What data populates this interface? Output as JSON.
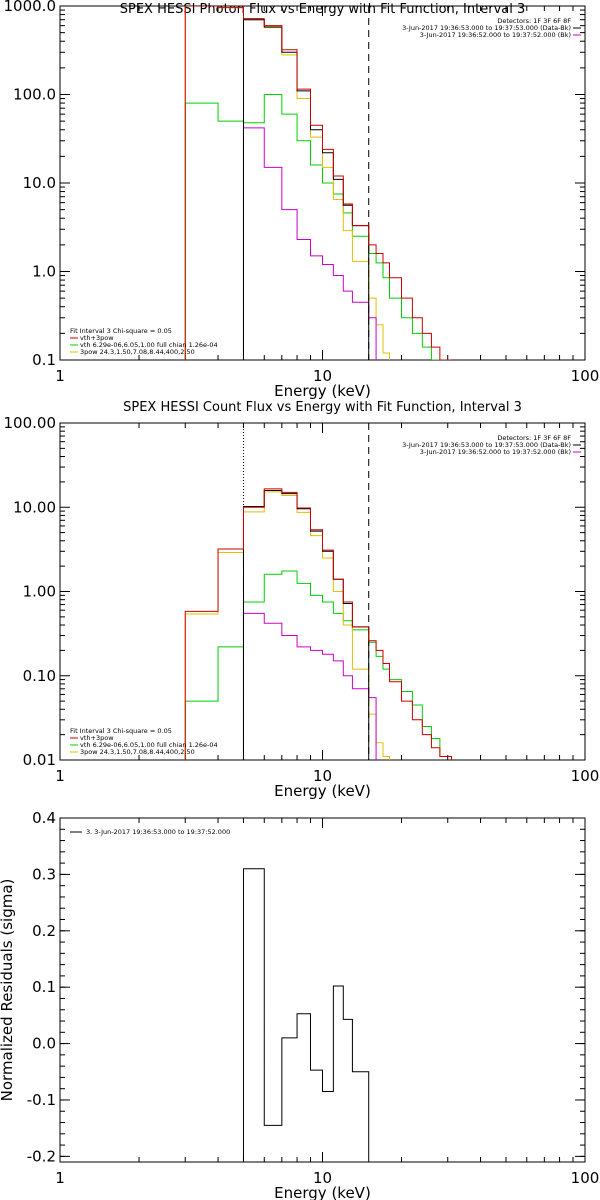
{
  "colors": {
    "total": "#cc0000",
    "data": "#000000",
    "background": "#cc00cc",
    "vth": "#00d000",
    "3pow": "#e0c000"
  },
  "chart_data": [
    {
      "type": "line",
      "title": "SPEX HESSI Photon Flux vs Energy with Fit Function, Interval 3",
      "xlabel": "Energy (keV)",
      "ylabel": "",
      "xscale": "log",
      "yscale": "log",
      "xlim": [
        1,
        100
      ],
      "ylim": [
        0.1,
        1000
      ],
      "xticks": [
        {
          "v": 1,
          "label": "1"
        },
        {
          "v": 10,
          "label": "10"
        },
        {
          "v": 100,
          "label": "100"
        }
      ],
      "yticks": [
        {
          "v": 0.1,
          "label": "0.1"
        },
        {
          "v": 1,
          "label": "1.0"
        },
        {
          "v": 10,
          "label": "10.0"
        },
        {
          "v": 100,
          "label": "100.0"
        },
        {
          "v": 1000,
          "label": "1000.0"
        }
      ],
      "vlines": [
        {
          "x": 5,
          "style": "dotted",
          "color": "#cc00cc"
        },
        {
          "x": 15,
          "style": "dashed",
          "color": "#000000"
        }
      ],
      "bin_edges": [
        3,
        4,
        5,
        6,
        7,
        8,
        9,
        10,
        11,
        12,
        13,
        15,
        16,
        17,
        18,
        20,
        22,
        24,
        26,
        28,
        31
      ],
      "series": [
        {
          "name": "data",
          "key": "data",
          "values": [
            null,
            null,
            700,
            580,
            300,
            110,
            40,
            22,
            11,
            5.6,
            3.3,
            null,
            null,
            null,
            null,
            null,
            null,
            null,
            null,
            null
          ]
        },
        {
          "name": "vth+3pow",
          "key": "total",
          "values": [
            1000,
            960,
            720,
            600,
            320,
            115,
            45,
            24,
            12,
            5.8,
            3.3,
            2.0,
            1.6,
            1.25,
            0.85,
            0.5,
            0.3,
            0.2,
            0.14,
            0.1
          ]
        },
        {
          "name": "vth 6.29e-06,6.05,1.00  full chian 1.26e-04",
          "key": "vth",
          "values": [
            80,
            50,
            48,
            100,
            60,
            30,
            16,
            10,
            7.5,
            4.6,
            2.5,
            1.6,
            1.25,
            0.85,
            0.5,
            0.3,
            0.2,
            0.14,
            0.1,
            null
          ]
        },
        {
          "name": "3pow 24.3,1.50,7.08,8.44,400,2.50",
          "key": "3pow",
          "values": [
            1000,
            960,
            700,
            570,
            280,
            90,
            33,
            15,
            6.5,
            2.9,
            1.3,
            0.5,
            0.25,
            0.12,
            null,
            null,
            null,
            null,
            null,
            null
          ]
        },
        {
          "name": "background",
          "key": "background",
          "values": [
            null,
            null,
            42,
            15,
            5.0,
            2.3,
            1.5,
            1.2,
            0.9,
            0.6,
            0.45,
            0.3,
            null,
            null,
            null,
            null,
            null,
            null,
            null,
            null
          ]
        }
      ],
      "legend_title": "Fit Interval 3   Chi-square = 0.05",
      "legend_entries": [
        {
          "label": "vth+3pow",
          "key": "total"
        },
        {
          "label": "vth 6.29e-06,6.05,1.00  full chian 1.26e-04",
          "key": "vth"
        },
        {
          "label": "3pow 24.3,1.50,7.08,8.44,400,2.50",
          "key": "3pow"
        }
      ],
      "info_lines": [
        {
          "text": "Detectors: 1F 3F 6F 8F",
          "key": null
        },
        {
          "text": "3-Jun-2017 19:36:53.000 to 19:37:53.000 (Data-Bk)",
          "key": "data"
        },
        {
          "text": "3-Jun-2017 19:36:52.000 to 19:37:52.000 (Bk)",
          "key": "background"
        }
      ]
    },
    {
      "type": "line",
      "title": "SPEX HESSI Count Flux vs Energy with Fit Function, Interval 3",
      "xlabel": "Energy (keV)",
      "ylabel": "",
      "xscale": "log",
      "yscale": "log",
      "xlim": [
        1,
        100
      ],
      "ylim": [
        0.01,
        100
      ],
      "xticks": [
        {
          "v": 1,
          "label": "1"
        },
        {
          "v": 10,
          "label": "10"
        },
        {
          "v": 100,
          "label": "100"
        }
      ],
      "yticks": [
        {
          "v": 0.01,
          "label": "0.01"
        },
        {
          "v": 0.1,
          "label": "0.10"
        },
        {
          "v": 1,
          "label": "1.00"
        },
        {
          "v": 10,
          "label": "10.00"
        },
        {
          "v": 100,
          "label": "100.00"
        }
      ],
      "vlines": [
        {
          "x": 5,
          "style": "dotted",
          "color": "#000000"
        },
        {
          "x": 15,
          "style": "dashed",
          "color": "#000000"
        }
      ],
      "bin_edges": [
        3,
        4,
        5,
        6,
        7,
        8,
        9,
        10,
        11,
        12,
        13,
        15,
        16,
        17,
        18,
        20,
        22,
        24,
        26,
        28,
        31
      ],
      "series": [
        {
          "name": "data",
          "key": "data",
          "values": [
            null,
            null,
            10.2,
            15.8,
            14.5,
            9.6,
            5.2,
            3.0,
            1.4,
            0.72,
            0.38,
            null,
            null,
            null,
            null,
            null,
            null,
            null,
            null,
            null
          ]
        },
        {
          "name": "vth+3pow",
          "key": "total",
          "values": [
            0.58,
            3.2,
            10,
            16.5,
            15,
            9.8,
            5.4,
            3.1,
            1.4,
            0.75,
            0.38,
            0.26,
            0.2,
            0.14,
            0.085,
            0.05,
            0.03,
            0.02,
            0.014,
            0.011
          ]
        },
        {
          "name": "vth 6.29e-06,6.05,1.00  full chian 1.26e-04",
          "key": "vth",
          "values": [
            0.05,
            0.22,
            0.75,
            1.6,
            1.75,
            1.25,
            0.9,
            0.75,
            0.55,
            0.45,
            0.35,
            0.25,
            0.17,
            0.12,
            0.09,
            0.065,
            0.045,
            0.025,
            0.018,
            0.011
          ]
        },
        {
          "name": "3pow 24.3,1.50,7.08,8.44,400,2.50",
          "key": "3pow",
          "values": [
            0.54,
            2.9,
            8.8,
            15.2,
            13.8,
            8.7,
            4.6,
            2.5,
            1.0,
            0.4,
            0.12,
            0.035,
            0.016,
            0.011,
            null,
            null,
            null,
            null,
            null,
            null
          ]
        },
        {
          "name": "background",
          "key": "background",
          "values": [
            null,
            null,
            0.55,
            0.42,
            0.3,
            0.22,
            0.2,
            0.18,
            0.15,
            0.1,
            0.07,
            0.055,
            null,
            null,
            null,
            null,
            null,
            null,
            null,
            null
          ]
        }
      ],
      "legend_title": "Fit Interval 3   Chi-square = 0.05",
      "legend_entries": [
        {
          "label": "vth+3pow",
          "key": "total"
        },
        {
          "label": "vth 6.29e-06,6.05,1.00  full chian 1.26e-04",
          "key": "vth"
        },
        {
          "label": "3pow 24.3,1.50,7.08,8.44,400,2.50",
          "key": "3pow"
        }
      ],
      "info_lines": [
        {
          "text": "Detectors: 1F 3F 6F 8F",
          "key": null
        },
        {
          "text": "3-Jun-2017 19:36:53.000 to 19:37:53.000 (Data-Bk)",
          "key": "data"
        },
        {
          "text": "3-Jun-2017 19:36:52.000 to 19:37:52.000 (Bk)",
          "key": "background"
        }
      ]
    },
    {
      "type": "line",
      "title": "",
      "xlabel": "Energy (keV)",
      "ylabel": "Normalized Residuals (sigma)",
      "xscale": "log",
      "yscale": "linear",
      "xlim": [
        1,
        100
      ],
      "ylim": [
        -0.21,
        0.4
      ],
      "xticks": [
        {
          "v": 1,
          "label": "1"
        },
        {
          "v": 10,
          "label": "10"
        },
        {
          "v": 100,
          "label": "100"
        }
      ],
      "yticks": [
        {
          "v": -0.2,
          "label": "-0.2"
        },
        {
          "v": -0.1,
          "label": "-0.1"
        },
        {
          "v": 0,
          "label": "0.0"
        },
        {
          "v": 0.1,
          "label": "0.1"
        },
        {
          "v": 0.2,
          "label": "0.2"
        },
        {
          "v": 0.3,
          "label": "0.3"
        },
        {
          "v": 0.4,
          "label": "0.4"
        }
      ],
      "vlines": [],
      "bin_edges": [
        5,
        6,
        7,
        8,
        9,
        10,
        11,
        12,
        13,
        15
      ],
      "series": [
        {
          "name": "3.  3-Jun-2017 19:36:53.000 to 19:37:52.000",
          "key": "data",
          "values": [
            0.31,
            -0.145,
            0.01,
            0.053,
            -0.047,
            -0.085,
            0.102,
            0.043,
            -0.05
          ]
        }
      ],
      "legend_title": "",
      "legend_entries": [
        {
          "label": "3.  3-Jun-2017 19:36:53.000 to 19:37:52.000",
          "key": "data"
        }
      ],
      "info_lines": []
    }
  ]
}
